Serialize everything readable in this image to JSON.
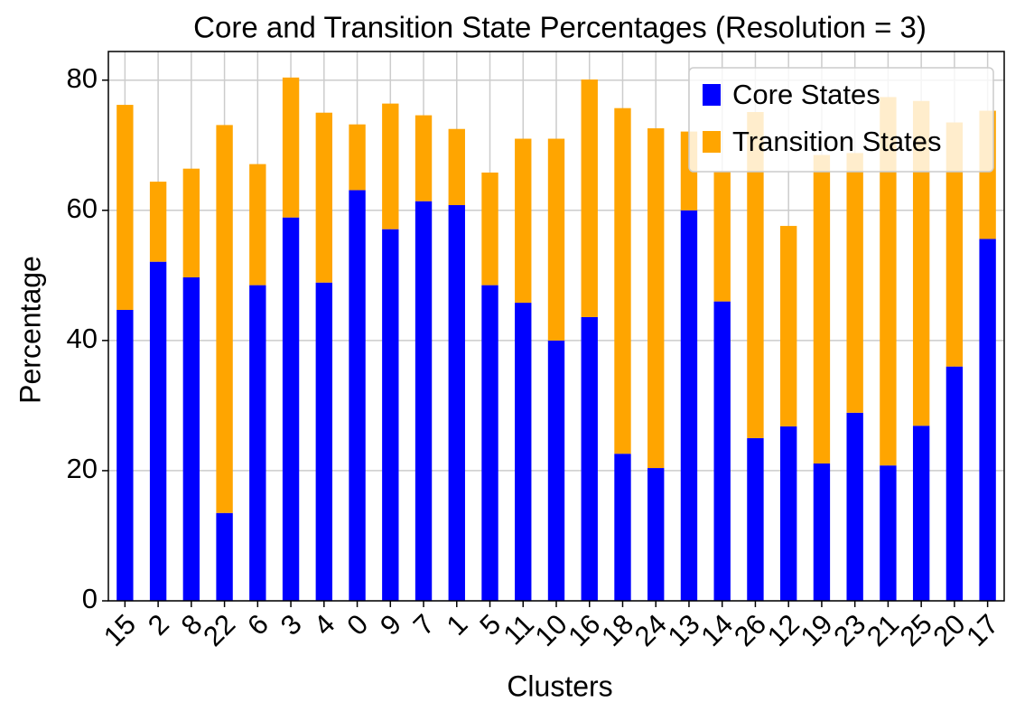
{
  "chart_data": {
    "type": "stacked-bar",
    "title": "Core and Transition State Percentages (Resolution = 3)",
    "x_label": "Clusters",
    "y_label": "Percentage",
    "categories": [
      "15",
      "2",
      "8",
      "22",
      "6",
      "3",
      "4",
      "0",
      "9",
      "7",
      "1",
      "5",
      "11",
      "10",
      "16",
      "18",
      "24",
      "13",
      "14",
      "26",
      "12",
      "19",
      "23",
      "21",
      "25",
      "20",
      "17"
    ],
    "series": [
      {
        "name": "Core States",
        "color": "#0000ff",
        "values": [
          44.7,
          52.1,
          49.7,
          13.5,
          48.5,
          58.9,
          48.9,
          63.1,
          57.1,
          61.4,
          60.8,
          48.5,
          45.8,
          40.0,
          43.6,
          22.6,
          20.4,
          60.0,
          46.0,
          25.0,
          26.8,
          21.1,
          28.9,
          20.8,
          26.9,
          36.0,
          55.6
        ]
      },
      {
        "name": "Transition States",
        "color": "#ffa500",
        "values": [
          31.5,
          12.3,
          16.7,
          59.6,
          18.6,
          21.5,
          26.1,
          10.1,
          19.3,
          13.2,
          11.7,
          17.3,
          25.2,
          31.0,
          36.5,
          53.1,
          52.2,
          12.1,
          20.0,
          50.1,
          30.8,
          47.4,
          39.9,
          56.6,
          49.9,
          37.5,
          19.7
        ]
      }
    ],
    "ylim": [
      0,
      84.4
    ],
    "yticks": [
      0,
      20,
      40,
      60,
      80
    ],
    "grid": true,
    "legend": "upper-right"
  }
}
